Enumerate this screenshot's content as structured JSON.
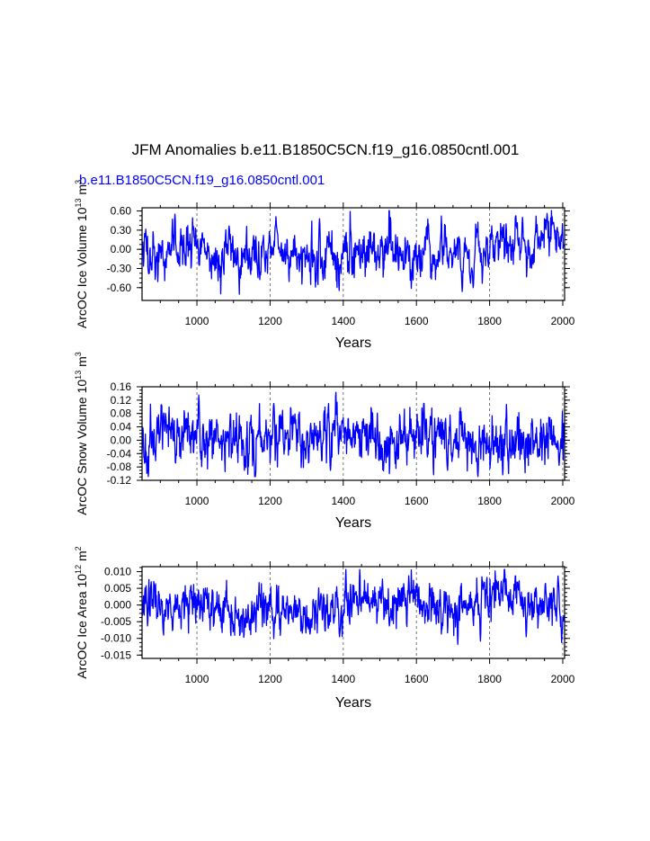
{
  "title": "JFM Anomalies b.e11.B1850C5CN.f19_g16.0850cntl.001",
  "subtitle": "b.e11.B1850C5CN.f19_g16.0850cntl.001",
  "colors": {
    "series": "#0000ff",
    "subtitle": "#0000ff",
    "axis": "#000000",
    "grid": "#555555"
  },
  "chart_data": [
    {
      "type": "line",
      "name": "ice-volume",
      "ylabel_main": "ArcOC Ice Volume 10",
      "ylabel_exp": "13",
      "ylabel_unit": " m",
      "ylabel_unit_exp": "3",
      "xlabel": "Years",
      "xlim": [
        850,
        2005
      ],
      "ylim": [
        -0.8,
        0.65
      ],
      "xticks": [
        1000,
        1200,
        1400,
        1600,
        1800,
        2000
      ],
      "yticks": [
        -0.6,
        -0.3,
        0.0,
        0.3,
        0.6
      ],
      "ytick_labels": [
        "-0.60",
        "-0.30",
        "0.00",
        "0.30",
        "0.60"
      ],
      "amplitude": 0.17,
      "lowfreq": 0.13,
      "seed": 11,
      "features": [
        {
          "x": 940,
          "y": 0.55
        },
        {
          "x": 1335,
          "y": 0.48
        },
        {
          "x": 1345,
          "y": -0.48
        },
        {
          "x": 1725,
          "y": -0.66
        },
        {
          "x": 1755,
          "y": -0.6
        },
        {
          "x": 1890,
          "y": 0.5
        },
        {
          "x": 1975,
          "y": 0.42
        }
      ]
    },
    {
      "type": "line",
      "name": "snow-volume",
      "ylabel_main": "ArcOC Snow Volume 10",
      "ylabel_exp": "13",
      "ylabel_unit": " m",
      "ylabel_unit_exp": "3",
      "xlabel": "Years",
      "xlim": [
        850,
        2005
      ],
      "ylim": [
        -0.12,
        0.16
      ],
      "xticks": [
        1000,
        1200,
        1400,
        1600,
        1800,
        2000
      ],
      "yticks": [
        -0.12,
        -0.08,
        -0.04,
        0.0,
        0.04,
        0.08,
        0.12,
        0.16
      ],
      "ytick_labels": [
        "-0.12",
        "-0.08",
        "-0.04",
        "0.00",
        "0.04",
        "0.08",
        "0.12",
        "0.16"
      ],
      "amplitude": 0.04,
      "lowfreq": 0.008,
      "seed": 23,
      "features": [
        {
          "x": 1005,
          "y": 0.135
        },
        {
          "x": 1210,
          "y": 0.11
        },
        {
          "x": 1130,
          "y": -0.09
        },
        {
          "x": 1365,
          "y": -0.09
        },
        {
          "x": 1620,
          "y": 0.11
        },
        {
          "x": 1685,
          "y": -0.09
        },
        {
          "x": 1990,
          "y": -0.075
        }
      ]
    },
    {
      "type": "line",
      "name": "ice-area",
      "ylabel_main": "ArcOC Ice Area 10",
      "ylabel_exp": "12",
      "ylabel_unit": " m",
      "ylabel_unit_exp": "2",
      "xlabel": "Years",
      "xlim": [
        850,
        2005
      ],
      "ylim": [
        -0.016,
        0.0115
      ],
      "xticks": [
        1000,
        1200,
        1400,
        1600,
        1800,
        2000
      ],
      "yticks": [
        -0.015,
        -0.01,
        -0.005,
        0.0,
        0.005,
        0.01
      ],
      "ytick_labels": [
        "-0.015",
        "-0.010",
        "-0.005",
        "0.000",
        "0.005",
        "0.010"
      ],
      "amplitude": 0.0032,
      "lowfreq": 0.0016,
      "seed": 37,
      "features": [
        {
          "x": 1713,
          "y": -0.0118
        },
        {
          "x": 1775,
          "y": -0.0108
        },
        {
          "x": 1900,
          "y": -0.0095
        },
        {
          "x": 1987,
          "y": 0.0087
        },
        {
          "x": 1390,
          "y": -0.0095
        }
      ]
    }
  ]
}
